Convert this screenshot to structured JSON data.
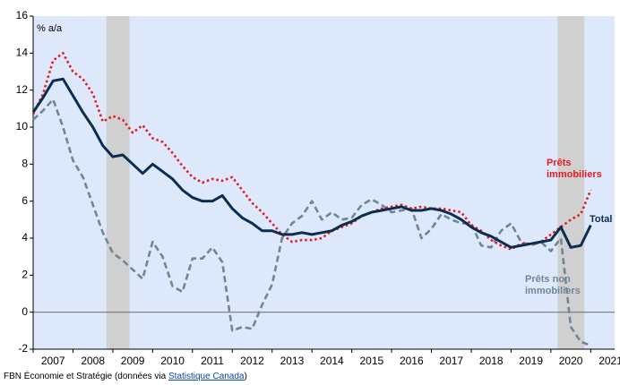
{
  "chart_data": {
    "type": "line",
    "y_label": "% a/a",
    "x": [
      2007,
      2007.25,
      2007.5,
      2007.75,
      2008,
      2008.25,
      2008.5,
      2008.75,
      2009,
      2009.25,
      2009.5,
      2009.75,
      2010,
      2010.25,
      2010.5,
      2010.75,
      2011,
      2011.25,
      2011.5,
      2011.75,
      2012,
      2012.25,
      2012.5,
      2012.75,
      2013,
      2013.25,
      2013.5,
      2013.75,
      2014,
      2014.25,
      2014.5,
      2014.75,
      2015,
      2015.25,
      2015.5,
      2015.75,
      2016,
      2016.25,
      2016.5,
      2016.75,
      2017,
      2017.25,
      2017.5,
      2017.75,
      2018,
      2018.25,
      2018.5,
      2018.75,
      2019,
      2019.25,
      2019.5,
      2019.75,
      2020,
      2020.25,
      2020.5,
      2020.75,
      2021
    ],
    "series": [
      {
        "name": "Prêts non immobiliers",
        "color": "#6e8797",
        "style": "dashed",
        "values": [
          10.4,
          10.9,
          11.5,
          10.0,
          8.2,
          7.3,
          5.8,
          4.3,
          3.2,
          2.8,
          2.3,
          1.8,
          3.8,
          3.0,
          1.4,
          1.1,
          2.9,
          2.9,
          3.5,
          2.7,
          -1.0,
          -0.8,
          -0.9,
          0.4,
          1.5,
          4.0,
          4.8,
          5.2,
          6.0,
          5.0,
          5.4,
          5.0,
          5.1,
          5.8,
          6.1,
          5.8,
          5.4,
          5.5,
          5.6,
          4.0,
          4.5,
          5.3,
          5.0,
          4.8,
          4.8,
          3.6,
          3.5,
          4.4,
          4.8,
          3.8,
          3.6,
          3.8,
          3.3,
          4.0,
          -0.8,
          -1.6,
          -1.8
        ]
      },
      {
        "name": "Prêts immobiliers",
        "color": "#e31b23",
        "style": "dotted",
        "values": [
          10.7,
          11.8,
          13.6,
          14.0,
          13.0,
          12.6,
          11.8,
          10.3,
          10.6,
          10.4,
          9.7,
          10.1,
          9.4,
          9.2,
          8.6,
          7.9,
          7.3,
          7.0,
          7.2,
          7.1,
          7.3,
          6.6,
          5.9,
          5.4,
          4.8,
          4.2,
          3.8,
          3.9,
          3.9,
          4.0,
          4.4,
          4.6,
          4.8,
          5.2,
          5.4,
          5.6,
          5.7,
          5.8,
          5.6,
          5.7,
          5.6,
          5.6,
          5.5,
          5.4,
          4.7,
          4.4,
          3.9,
          3.6,
          3.4,
          3.7,
          3.7,
          3.8,
          4.2,
          4.6,
          5.0,
          5.3,
          6.6
        ]
      },
      {
        "name": "Total",
        "color": "#0c2d4f",
        "style": "solid",
        "values": [
          10.8,
          11.6,
          12.5,
          12.6,
          11.7,
          10.8,
          10.0,
          9.0,
          8.4,
          8.5,
          8.0,
          7.5,
          8.0,
          7.6,
          7.2,
          6.6,
          6.2,
          6.0,
          6.0,
          6.3,
          5.6,
          5.1,
          4.8,
          4.4,
          4.4,
          4.2,
          4.2,
          4.3,
          4.2,
          4.3,
          4.4,
          4.7,
          4.9,
          5.2,
          5.4,
          5.5,
          5.6,
          5.7,
          5.5,
          5.5,
          5.6,
          5.5,
          5.3,
          5.0,
          4.6,
          4.3,
          4.1,
          3.8,
          3.5,
          3.6,
          3.7,
          3.8,
          3.9,
          4.6,
          3.5,
          3.6,
          4.7
        ]
      }
    ],
    "shaded": [
      [
        2008.84,
        2009.42
      ],
      [
        2020.17,
        2020.84
      ]
    ],
    "xlim": [
      2007,
      2021.6
    ],
    "xticks": [
      2007,
      2008,
      2009,
      2010,
      2011,
      2012,
      2013,
      2014,
      2015,
      2016,
      2017,
      2018,
      2019,
      2020,
      2021
    ],
    "ylim": [
      -2,
      16
    ],
    "yticks": [
      -2,
      0,
      2,
      4,
      6,
      8,
      10,
      12,
      14,
      16
    ],
    "source_prefix": "FBN Économie et Stratégie (données via ",
    "source_link": "Statistique Canada",
    "source_suffix": ")"
  }
}
